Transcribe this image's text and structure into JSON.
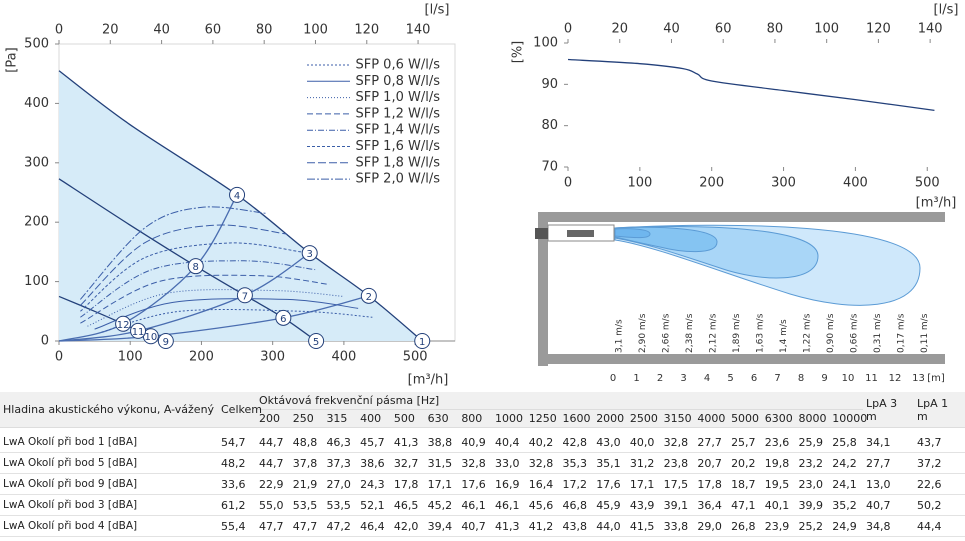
{
  "chart_data": [
    {
      "type": "line",
      "y_label": "[Pa]",
      "x_label": "[m³/h]",
      "x2_label": "[l/s]",
      "xlim": [
        0,
        556
      ],
      "xticks": [
        0,
        100,
        200,
        300,
        400,
        500
      ],
      "x2lim": [
        0,
        154.4
      ],
      "x2ticks": [
        0,
        20,
        40,
        60,
        80,
        100,
        120,
        140
      ],
      "ylim": [
        0,
        500
      ],
      "yticks": [
        0,
        100,
        200,
        300,
        400,
        500
      ],
      "legend": "upper right",
      "series": [
        {
          "color": "#23407a",
          "fill": "#d6ebf8",
          "x": [
            0,
            100,
            250,
            352,
            435,
            510
          ],
          "values": [
            455,
            364,
            246,
            148,
            76,
            0
          ]
        },
        {
          "color": "#23407a",
          "x": [
            0,
            100,
            192,
            261,
            315,
            361
          ],
          "values": [
            273,
            195,
            126,
            77,
            39,
            0
          ]
        },
        {
          "color": "#23407a",
          "x": [
            0,
            50,
            90,
            111,
            129,
            150
          ],
          "values": [
            75,
            50,
            29,
            17,
            8,
            0
          ]
        },
        {
          "color": "#4a6db0",
          "x": [
            0,
            90,
            192,
            250
          ],
          "values": [
            0,
            29,
            126,
            246
          ]
        },
        {
          "color": "#4a6db0",
          "x": [
            0,
            111,
            261,
            352
          ],
          "values": [
            0,
            17,
            77,
            148
          ]
        },
        {
          "color": "#4a6db0",
          "x": [
            0,
            129,
            315,
            435
          ],
          "values": [
            0,
            8,
            39,
            76
          ]
        },
        {
          "name": "SFP 0,6 W/l/s",
          "color": "#3b5ea8",
          "dash": "2 2",
          "x": [
            60,
            170,
            340,
            440
          ],
          "values": [
            15,
            50,
            50,
            40
          ]
        },
        {
          "name": "SFP 0,8 W/l/s",
          "color": "#3b5ea8",
          "dash": "",
          "x": [
            50,
            160,
            320,
            420
          ],
          "values": [
            20,
            65,
            70,
            55
          ]
        },
        {
          "name": "SFP 1,0 W/l/s",
          "color": "#3b5ea8",
          "dash": "1 2",
          "x": [
            40,
            150,
            300,
            400
          ],
          "values": [
            25,
            80,
            85,
            75
          ]
        },
        {
          "name": "SFP 1,2 W/l/s",
          "color": "#3b5ea8",
          "dash": "6 3",
          "x": [
            30,
            140,
            280,
            380
          ],
          "values": [
            30,
            100,
            110,
            95
          ]
        },
        {
          "name": "SFP 1,4 W/l/s",
          "color": "#3b5ea8",
          "dash": "6 2 1 2",
          "x": [
            30,
            130,
            260,
            360
          ],
          "values": [
            40,
            120,
            135,
            120
          ]
        },
        {
          "name": "SFP 1,6 W/l/s",
          "color": "#3b5ea8",
          "dash": "3 2",
          "x": [
            30,
            120,
            240,
            340
          ],
          "values": [
            50,
            140,
            165,
            150
          ]
        },
        {
          "name": "SFP 1,8 W/l/s",
          "color": "#3b5ea8",
          "dash": "8 3",
          "x": [
            30,
            120,
            220,
            320
          ],
          "values": [
            60,
            165,
            195,
            180
          ]
        },
        {
          "name": "SFP 2,0 W/l/s",
          "color": "#3b5ea8",
          "dash": "8 2 2 2",
          "x": [
            30,
            120,
            200,
            290
          ],
          "values": [
            70,
            190,
            225,
            215
          ]
        }
      ],
      "points": [
        {
          "label": "1",
          "x": 510,
          "y": 0
        },
        {
          "label": "2",
          "x": 435,
          "y": 76
        },
        {
          "label": "3",
          "x": 352,
          "y": 148
        },
        {
          "label": "4",
          "x": 250,
          "y": 246
        },
        {
          "label": "5",
          "x": 361,
          "y": 0
        },
        {
          "label": "6",
          "x": 315,
          "y": 39
        },
        {
          "label": "7",
          "x": 261,
          "y": 77
        },
        {
          "label": "8",
          "x": 192,
          "y": 126
        },
        {
          "label": "9",
          "x": 150,
          "y": 0
        },
        {
          "label": "10",
          "x": 129,
          "y": 8
        },
        {
          "label": "11",
          "x": 111,
          "y": 17
        },
        {
          "label": "12",
          "x": 90,
          "y": 29
        }
      ]
    },
    {
      "type": "line",
      "y_label": "[%]",
      "x_label": "[m³/h]",
      "x2_label": "[l/s]",
      "xlim": [
        0,
        540
      ],
      "xticks": [
        0,
        100,
        200,
        300,
        400,
        500
      ],
      "x2lim": [
        0,
        150
      ],
      "x2ticks": [
        0,
        20,
        40,
        60,
        80,
        100,
        120,
        140
      ],
      "ylim": [
        70,
        100
      ],
      "yticks": [
        70,
        80,
        90,
        100
      ],
      "series": [
        {
          "color": "#23407a",
          "x": [
            0,
            100,
            160,
            180,
            200,
            300,
            400,
            510
          ],
          "values": [
            96,
            95,
            93.8,
            92.5,
            90.8,
            88.5,
            86.3,
            83.7
          ]
        }
      ]
    }
  ],
  "throw": {
    "velocities": [
      "3,1 m/s",
      "2,90 m/s",
      "2,66 m/s",
      "2,38 m/s",
      "2,12 m/s",
      "1,89 m/s",
      "1,63 m/s",
      "1,4 m/s",
      "1,22 m/s",
      "0,90 m/s",
      "0,66 m/s",
      "0,31 m/s",
      "0,17 m/s",
      "0,11 m/s"
    ],
    "distance_ticks": [
      0,
      1,
      2,
      3,
      4,
      5,
      6,
      7,
      8,
      9,
      10,
      11,
      12,
      13
    ],
    "distance_unit": "[m]"
  },
  "table": {
    "header": {
      "label": "Hladina akustického výkonu, A-vážený",
      "total": "Celkem",
      "band_title": "Oktávová frekvenční pásma [Hz]",
      "bands": [
        "200",
        "250",
        "315",
        "400",
        "500",
        "630",
        "800",
        "1000",
        "1250",
        "1600",
        "2000",
        "2500",
        "3150",
        "4000",
        "5000",
        "6300",
        "8000",
        "10000"
      ],
      "lpa3": "LpA 3 m",
      "lpa1": "LpA 1 m"
    },
    "rows": [
      [
        "LwA Okolí při bod 1 [dBA]",
        "54,7",
        "44,7",
        "48,8",
        "46,3",
        "45,7",
        "41,3",
        "38,8",
        "40,9",
        "40,4",
        "40,2",
        "42,8",
        "43,0",
        "40,0",
        "32,8",
        "27,7",
        "25,7",
        "23,6",
        "25,9",
        "25,8",
        "34,1",
        "43,7"
      ],
      [
        "LwA Okolí při bod 5 [dBA]",
        "48,2",
        "44,7",
        "37,8",
        "37,3",
        "38,6",
        "32,7",
        "31,5",
        "32,8",
        "33,0",
        "32,8",
        "35,3",
        "35,1",
        "31,2",
        "23,8",
        "20,7",
        "20,2",
        "19,8",
        "23,2",
        "24,2",
        "27,7",
        "37,2"
      ],
      [
        "LwA Okolí při bod 9 [dBA]",
        "33,6",
        "22,9",
        "21,9",
        "27,0",
        "24,3",
        "17,8",
        "17,1",
        "17,6",
        "16,9",
        "16,4",
        "17,2",
        "17,6",
        "17,1",
        "17,5",
        "17,8",
        "18,7",
        "19,5",
        "23,0",
        "24,1",
        "13,0",
        "22,6"
      ],
      [
        "LwA Okolí při bod 3 [dBA]",
        "61,2",
        "55,0",
        "53,5",
        "53,5",
        "52,1",
        "46,5",
        "45,2",
        "46,1",
        "46,1",
        "45,6",
        "46,8",
        "45,9",
        "43,9",
        "39,1",
        "36,4",
        "47,1",
        "40,1",
        "39,9",
        "35,2",
        "40,7",
        "50,2"
      ],
      [
        "LwA Okolí při bod 4 [dBA]",
        "55,4",
        "47,7",
        "47,7",
        "47,2",
        "46,4",
        "42,0",
        "39,4",
        "40,7",
        "41,3",
        "41,2",
        "43,8",
        "44,0",
        "41,5",
        "33,8",
        "29,0",
        "26,8",
        "23,9",
        "25,2",
        "24,9",
        "34,8",
        "44,4"
      ]
    ]
  }
}
